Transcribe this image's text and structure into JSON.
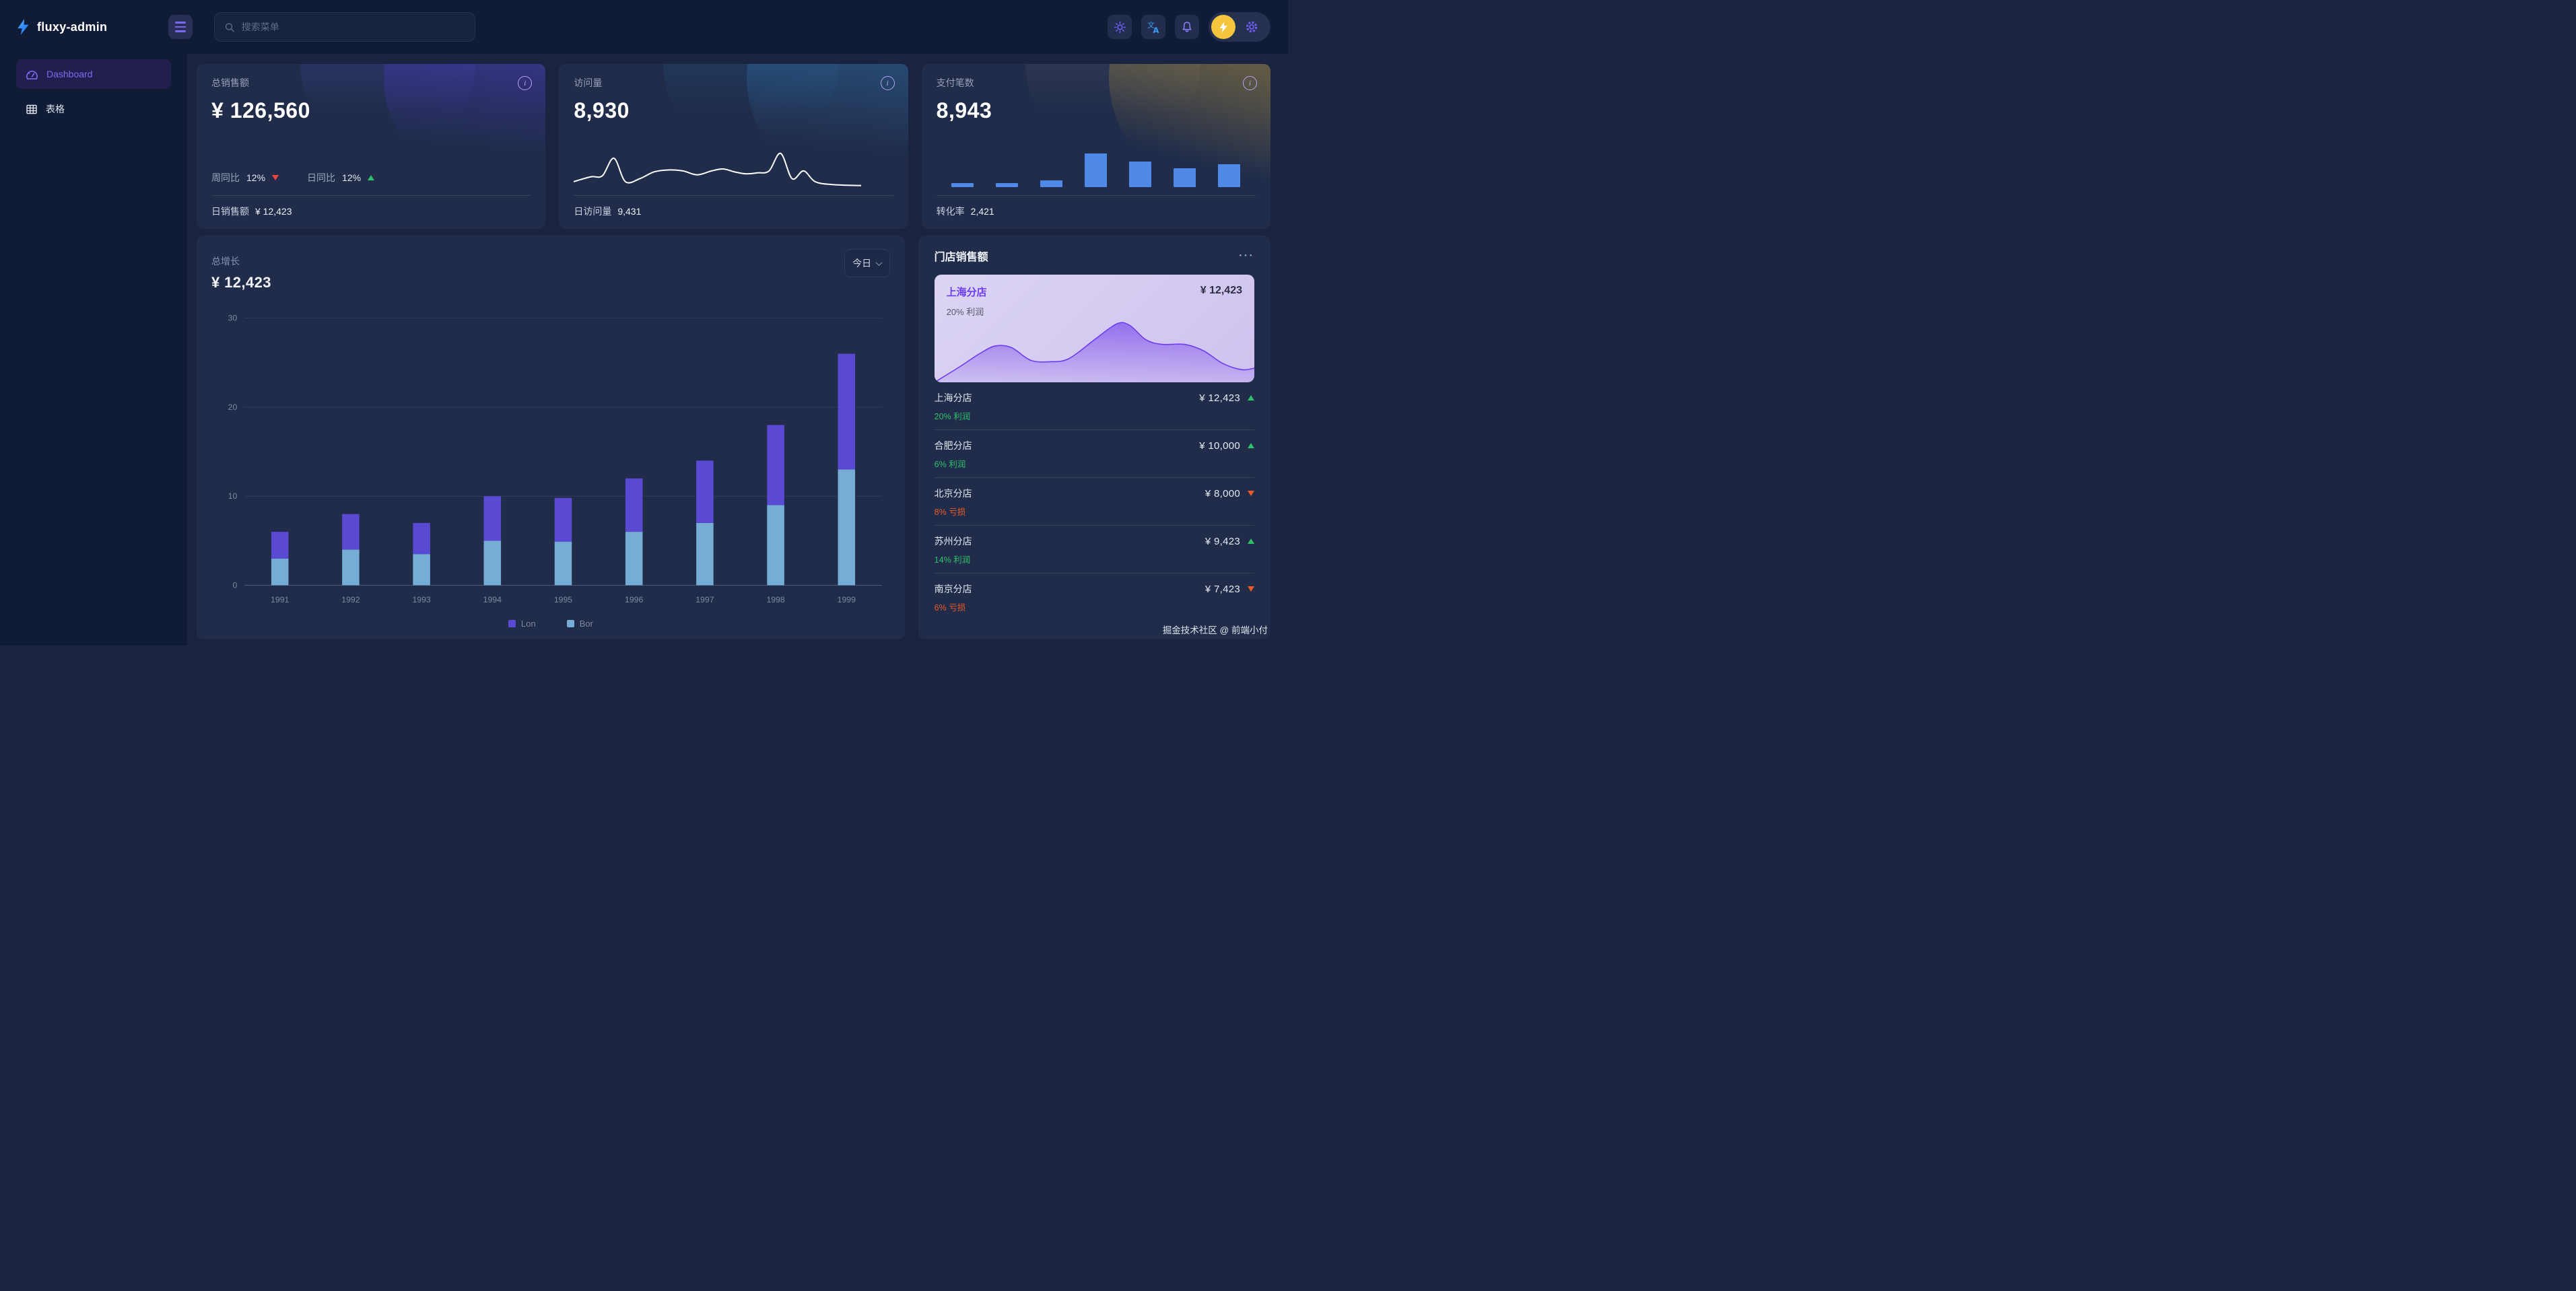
{
  "brand": {
    "name": "fluxy-admin",
    "logo_icon": "lightning-bolt-icon"
  },
  "topbar": {
    "search_placeholder": "搜索菜单",
    "icon_names": [
      "menu-hamburger-icon",
      "search-icon",
      "sun-theme-icon",
      "translate-icon",
      "bell-icon",
      "avatar-lightning-icon",
      "gear-icon"
    ]
  },
  "sidebar": {
    "items": [
      {
        "label": "Dashboard",
        "icon": "dashboard-gauge-icon",
        "active": true
      },
      {
        "label": "表格",
        "icon": "table-icon",
        "active": false
      }
    ]
  },
  "stat_cards": [
    {
      "title": "总销售额",
      "value": "¥ 126,560",
      "metrics": [
        {
          "label": "周同比",
          "value": "12%",
          "trend": "down"
        },
        {
          "label": "日同比",
          "value": "12%",
          "trend": "up"
        }
      ],
      "footer": {
        "label": "日销售额",
        "value": "¥ 12,423"
      }
    },
    {
      "title": "访问量",
      "value": "8,930",
      "sparkline": {
        "color": "#ffffff",
        "points": [
          [
            0,
            33
          ],
          [
            6,
            28
          ],
          [
            10,
            27
          ],
          [
            14,
            9
          ],
          [
            18,
            33
          ],
          [
            23,
            30
          ],
          [
            28,
            23
          ],
          [
            33,
            21
          ],
          [
            38,
            22
          ],
          [
            43,
            26
          ],
          [
            48,
            22
          ],
          [
            52,
            20
          ],
          [
            56,
            23
          ],
          [
            60,
            25
          ],
          [
            64,
            24
          ],
          [
            68,
            22
          ],
          [
            72,
            4
          ],
          [
            76,
            30
          ],
          [
            80,
            22
          ],
          [
            84,
            33
          ],
          [
            90,
            36
          ],
          [
            100,
            37
          ]
        ]
      },
      "footer": {
        "label": "日访问量",
        "value": "9,431"
      }
    },
    {
      "title": "支付笔数",
      "value": "8,943",
      "bars": {
        "color": "#4f8ae8",
        "values": [
          13,
          12,
          20,
          100,
          76,
          56,
          68
        ]
      },
      "footer": {
        "label": "转化率",
        "value": "2,421"
      }
    }
  ],
  "growth": {
    "title": "总增长",
    "amount": "¥ 12,423",
    "range_label": "今日"
  },
  "chart_data": {
    "type": "bar",
    "stacked": true,
    "title": "总增长",
    "categories": [
      "1991",
      "1992",
      "1993",
      "1994",
      "1995",
      "1996",
      "1997",
      "1998",
      "1999"
    ],
    "series": [
      {
        "name": "Lon",
        "color": "#5a49d3",
        "stack_position": "top",
        "values": [
          3,
          4,
          3.5,
          5,
          4.9,
          6,
          7,
          9,
          13
        ]
      },
      {
        "name": "Bor",
        "color": "#76add6",
        "stack_position": "bottom",
        "values": [
          3,
          4,
          3.5,
          5,
          4.9,
          6,
          7,
          9,
          13
        ]
      }
    ],
    "xlabel": "",
    "ylabel": "",
    "ylim": [
      0,
      30
    ],
    "yticks": [
      0,
      10,
      20,
      30
    ],
    "grid": true,
    "legend_position": "bottom"
  },
  "store_panel": {
    "title": "门店销售额",
    "menu_icon": "ellipsis-icon",
    "featured": {
      "name": "上海分店",
      "value": "¥ 12,423",
      "note": "20% 利润",
      "area": {
        "line_color": "#6d3cf0",
        "fill_color": "#7b4ded",
        "points": [
          [
            0,
            40
          ],
          [
            8,
            30
          ],
          [
            14,
            22
          ],
          [
            19,
            17
          ],
          [
            24,
            18
          ],
          [
            30,
            26
          ],
          [
            36,
            27
          ],
          [
            42,
            25
          ],
          [
            50,
            13
          ],
          [
            57,
            3
          ],
          [
            61,
            4
          ],
          [
            66,
            13
          ],
          [
            71,
            16
          ],
          [
            78,
            16
          ],
          [
            84,
            20
          ],
          [
            90,
            28
          ],
          [
            96,
            32
          ],
          [
            100,
            31
          ]
        ]
      }
    },
    "stores": [
      {
        "name": "上海分店",
        "value": "¥ 12,423",
        "trend": "up",
        "note": "20% 利润",
        "note_type": "profit"
      },
      {
        "name": "合肥分店",
        "value": "¥ 10,000",
        "trend": "up",
        "note": "6% 利润",
        "note_type": "profit"
      },
      {
        "name": "北京分店",
        "value": "¥ 8,000",
        "trend": "down",
        "note": "8% 亏损",
        "note_type": "loss"
      },
      {
        "name": "苏州分店",
        "value": "¥ 9,423",
        "trend": "up",
        "note": "14% 利润",
        "note_type": "profit"
      },
      {
        "name": "南京分店",
        "value": "¥ 7,423",
        "trend": "down",
        "note": "6% 亏损",
        "note_type": "loss"
      }
    ]
  },
  "watermark": "掘金技术社区 @ 前端小付"
}
